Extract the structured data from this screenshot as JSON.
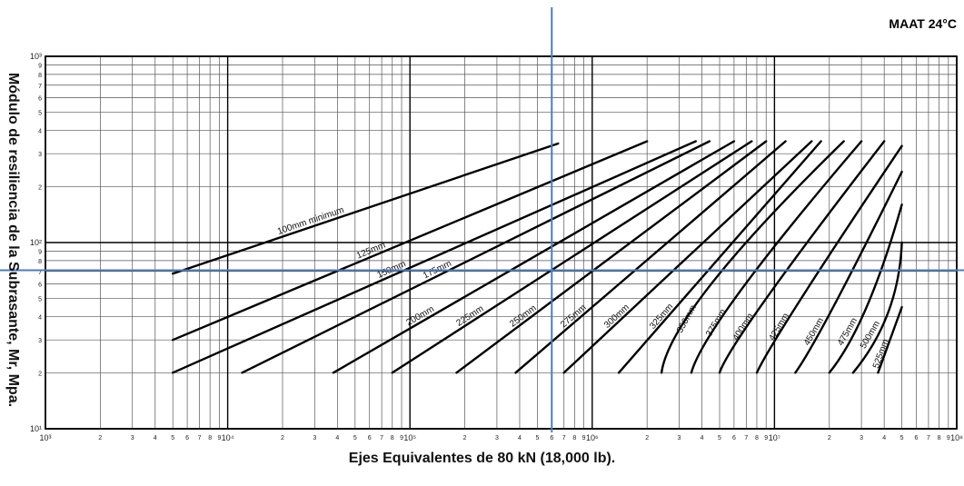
{
  "header": {
    "condition_label": "MAAT 24°C"
  },
  "chart_data": {
    "type": "line",
    "title": "",
    "condition": "MAAT 24°C",
    "xlabel": "Ejes Equivalentes de 80 kN (18,000 lb).",
    "ylabel": "Módulo de resiliencia de la Subrasante, Mr, Mpa.",
    "x_scale": "log",
    "y_scale": "log",
    "xlim": [
      1000,
      100000000
    ],
    "ylim": [
      10,
      1000
    ],
    "x_major_ticks": [
      {
        "value": 1000,
        "label": "10³"
      },
      {
        "value": 10000,
        "label": "10⁴"
      },
      {
        "value": 100000,
        "label": "10⁵"
      },
      {
        "value": 1000000,
        "label": "10⁶"
      },
      {
        "value": 10000000,
        "label": "10⁷"
      },
      {
        "value": 100000000,
        "label": "10⁸"
      }
    ],
    "y_major_ticks": [
      {
        "value": 10,
        "label": "10¹"
      },
      {
        "value": 100,
        "label": "10²"
      },
      {
        "value": 1000,
        "label": "10³"
      }
    ],
    "minor_tick_labels": [
      "2",
      "3",
      "4",
      "5",
      "6",
      "7",
      "8",
      "9"
    ],
    "grid": true,
    "series": [
      {
        "name": "100mm minimum",
        "points": [
          [
            5000,
            68
          ],
          [
            650000,
            340
          ]
        ]
      },
      {
        "name": "125mm",
        "points": [
          [
            5000,
            30
          ],
          [
            2000000,
            350
          ]
        ]
      },
      {
        "name": "150mm",
        "points": [
          [
            5000,
            20
          ],
          [
            3700000,
            350
          ]
        ]
      },
      {
        "name": "175mm",
        "points": [
          [
            12000,
            20
          ],
          [
            4400000,
            350
          ]
        ]
      },
      {
        "name": "200mm",
        "points": [
          [
            38000,
            20
          ],
          [
            6000000,
            350
          ]
        ]
      },
      {
        "name": "225mm",
        "points": [
          [
            80000,
            20
          ],
          [
            7500000,
            350
          ]
        ]
      },
      {
        "name": "250mm",
        "points": [
          [
            180000,
            20
          ],
          [
            9000000,
            350
          ]
        ]
      },
      {
        "name": "275mm",
        "points": [
          [
            380000,
            20
          ],
          [
            11500000,
            350
          ]
        ]
      },
      {
        "name": "300mm",
        "points": [
          [
            700000,
            20
          ],
          [
            16000000,
            350
          ]
        ]
      },
      {
        "name": "325mm",
        "points": [
          [
            1400000,
            20
          ],
          [
            18000000,
            350
          ]
        ]
      },
      {
        "name": "350mm",
        "points": [
          [
            2400000,
            20
          ],
          [
            4500000,
            60
          ],
          [
            24000000,
            350
          ]
        ]
      },
      {
        "name": "375mm",
        "points": [
          [
            3500000,
            20
          ],
          [
            6500000,
            55
          ],
          [
            30000000,
            350
          ]
        ]
      },
      {
        "name": "400mm",
        "points": [
          [
            5000000,
            20
          ],
          [
            9000000,
            50
          ],
          [
            40000000,
            350
          ]
        ]
      },
      {
        "name": "425mm",
        "points": [
          [
            8000000,
            20
          ],
          [
            14000000,
            50
          ],
          [
            50000000,
            330
          ]
        ]
      },
      {
        "name": "450mm",
        "points": [
          [
            13000000,
            20
          ],
          [
            21000000,
            45
          ],
          [
            50000000,
            240
          ]
        ]
      },
      {
        "name": "475mm",
        "points": [
          [
            20000000,
            20
          ],
          [
            32000000,
            45
          ],
          [
            50000000,
            160
          ]
        ]
      },
      {
        "name": "500mm",
        "points": [
          [
            27000000,
            20
          ],
          [
            42000000,
            42
          ],
          [
            50000000,
            100
          ]
        ]
      },
      {
        "name": "525mm",
        "points": [
          [
            37000000,
            20
          ],
          [
            50000000,
            45
          ]
        ]
      }
    ],
    "reference_lines": {
      "vertical_x": 600000,
      "horizontal_y": 71,
      "color": "#4a7cc0"
    }
  }
}
